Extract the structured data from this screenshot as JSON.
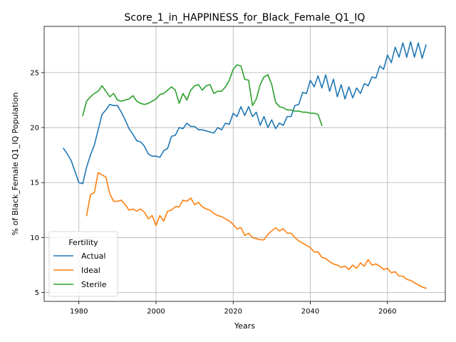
{
  "chart_data": {
    "type": "line",
    "title": "Score_1_in_HAPPINESS_for_Black_Female_Q1_IQ",
    "xlabel": "Years",
    "ylabel": "% of Black_Female Q1_IQ Population",
    "xlim": [
      1971,
      2075
    ],
    "ylim": [
      4.2,
      29.2
    ],
    "xticks": [
      1980,
      2000,
      2020,
      2040,
      2060
    ],
    "yticks": [
      5,
      10,
      15,
      20,
      25
    ],
    "grid": true,
    "legend": {
      "title": "Fertility",
      "position": "bottom-left"
    },
    "series": [
      {
        "name": "Actual",
        "color": "#1f77b4",
        "x": [
          1976,
          1977,
          1978,
          1979,
          1980,
          1981,
          1982,
          1983,
          1984,
          1985,
          1986,
          1987,
          1988,
          1989,
          1990,
          1991,
          1992,
          1993,
          1994,
          1995,
          1996,
          1997,
          1998,
          1999,
          2000,
          2001,
          2002,
          2003,
          2004,
          2005,
          2006,
          2007,
          2008,
          2009,
          2010,
          2011,
          2012,
          2013,
          2014,
          2015,
          2016,
          2017,
          2018,
          2019,
          2020,
          2021,
          2022,
          2023,
          2024,
          2025,
          2026,
          2027,
          2028,
          2029,
          2030,
          2031,
          2032,
          2033,
          2034,
          2035,
          2036,
          2037,
          2038,
          2039,
          2040,
          2041,
          2042,
          2043,
          2044,
          2045,
          2046,
          2047,
          2048,
          2049,
          2050,
          2051,
          2052,
          2053,
          2054,
          2055,
          2056,
          2057,
          2058,
          2059,
          2060,
          2061,
          2062,
          2063,
          2064,
          2065,
          2066,
          2067,
          2068,
          2069,
          2070
        ],
        "y": [
          18.1,
          17.6,
          17.0,
          16.0,
          15.0,
          14.9,
          16.4,
          17.5,
          18.4,
          19.8,
          21.2,
          21.6,
          22.1,
          22.0,
          22.0,
          21.4,
          20.7,
          19.9,
          19.4,
          18.8,
          18.7,
          18.3,
          17.6,
          17.4,
          17.4,
          17.3,
          17.9,
          18.1,
          19.2,
          19.3,
          20.0,
          19.9,
          20.4,
          20.1,
          20.1,
          19.8,
          19.8,
          19.7,
          19.6,
          19.5,
          20.0,
          19.8,
          20.4,
          20.3,
          21.3,
          21.0,
          21.9,
          21.1,
          21.9,
          21.0,
          21.4,
          20.2,
          21.0,
          20.0,
          20.7,
          19.9,
          20.4,
          20.2,
          21.0,
          21.0,
          22.0,
          22.1,
          23.2,
          23.1,
          24.3,
          23.7,
          24.7,
          23.6,
          24.8,
          23.3,
          24.4,
          22.8,
          23.9,
          22.6,
          23.7,
          22.7,
          23.6,
          23.1,
          24.0,
          23.8,
          24.6,
          24.5,
          25.6,
          25.3,
          26.6,
          25.9,
          27.3,
          26.4,
          27.7,
          26.4,
          27.8,
          26.4,
          27.7,
          26.3,
          27.5
        ]
      },
      {
        "name": "Ideal",
        "color": "#ff7f0e",
        "x": [
          1982,
          1983,
          1984,
          1985,
          1986,
          1987,
          1988,
          1989,
          1990,
          1991,
          1992,
          1993,
          1994,
          1995,
          1996,
          1997,
          1998,
          1999,
          2000,
          2001,
          2002,
          2003,
          2004,
          2005,
          2006,
          2007,
          2008,
          2009,
          2010,
          2011,
          2012,
          2013,
          2014,
          2015,
          2016,
          2017,
          2018,
          2019,
          2020,
          2021,
          2022,
          2023,
          2024,
          2025,
          2026,
          2027,
          2028,
          2029,
          2030,
          2031,
          2032,
          2033,
          2034,
          2035,
          2036,
          2037,
          2038,
          2039,
          2040,
          2041,
          2042,
          2043,
          2044,
          2045,
          2046,
          2047,
          2048,
          2049,
          2050,
          2051,
          2052,
          2053,
          2054,
          2055,
          2056,
          2057,
          2058,
          2059,
          2060,
          2061,
          2062,
          2063,
          2064,
          2065,
          2066,
          2067,
          2068,
          2069,
          2070
        ],
        "y": [
          12.0,
          13.9,
          14.1,
          15.9,
          15.7,
          15.5,
          14.0,
          13.3,
          13.3,
          13.4,
          13.0,
          12.5,
          12.6,
          12.4,
          12.6,
          12.3,
          11.7,
          12.0,
          11.1,
          12.0,
          11.5,
          12.4,
          12.5,
          12.8,
          12.8,
          13.4,
          13.3,
          13.6,
          13.0,
          13.2,
          12.8,
          12.6,
          12.5,
          12.2,
          12.0,
          11.9,
          11.7,
          11.5,
          11.2,
          10.8,
          10.9,
          10.2,
          10.4,
          10.0,
          9.9,
          9.8,
          9.8,
          10.3,
          10.6,
          10.9,
          10.6,
          10.8,
          10.4,
          10.4,
          10.0,
          9.7,
          9.5,
          9.3,
          9.1,
          8.7,
          8.7,
          8.2,
          8.1,
          7.8,
          7.6,
          7.5,
          7.3,
          7.4,
          7.1,
          7.5,
          7.2,
          7.7,
          7.4,
          8.0,
          7.5,
          7.6,
          7.4,
          7.1,
          7.2,
          6.8,
          6.9,
          6.5,
          6.5,
          6.2,
          6.1,
          5.9,
          5.7,
          5.5,
          5.4
        ]
      },
      {
        "name": "Sterile",
        "color": "#2ca02c",
        "x": [
          1981,
          1982,
          1983,
          1984,
          1985,
          1986,
          1987,
          1988,
          1989,
          1990,
          1991,
          1992,
          1993,
          1994,
          1995,
          1996,
          1997,
          1998,
          1999,
          2000,
          2001,
          2002,
          2003,
          2004,
          2005,
          2006,
          2007,
          2008,
          2009,
          2010,
          2011,
          2012,
          2013,
          2014,
          2015,
          2016,
          2017,
          2018,
          2019,
          2020,
          2021,
          2022,
          2023,
          2024,
          2025,
          2026,
          2027,
          2028,
          2029,
          2030,
          2031,
          2032,
          2033,
          2034,
          2035,
          2036,
          2037,
          2038,
          2039,
          2040,
          2041,
          2042,
          2043
        ],
        "y": [
          21.1,
          22.4,
          22.8,
          23.1,
          23.3,
          23.8,
          23.3,
          22.8,
          23.1,
          22.5,
          22.4,
          22.5,
          22.6,
          22.9,
          22.4,
          22.2,
          22.1,
          22.2,
          22.4,
          22.6,
          23.0,
          23.1,
          23.4,
          23.7,
          23.4,
          22.2,
          23.1,
          22.5,
          23.4,
          23.8,
          23.9,
          23.4,
          23.8,
          23.9,
          23.1,
          23.3,
          23.3,
          23.7,
          24.3,
          25.3,
          25.7,
          25.6,
          24.4,
          24.3,
          22.0,
          22.6,
          23.9,
          24.6,
          24.8,
          23.9,
          22.3,
          21.9,
          21.8,
          21.6,
          21.6,
          21.5,
          21.5,
          21.4,
          21.4,
          21.3,
          21.3,
          21.2,
          20.2
        ]
      }
    ]
  }
}
